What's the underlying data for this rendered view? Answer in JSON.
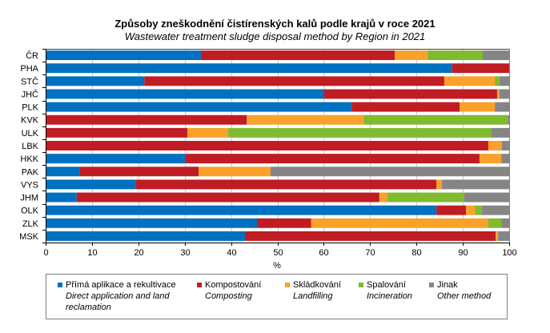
{
  "chart_data": {
    "type": "bar",
    "orientation": "horizontal",
    "stacked": true,
    "title": "Způsoby zneškodnění čistírenských kalů podle krajů v roce 2021",
    "subtitle": "Wastewater treatment sludge disposal method by Region in 2021",
    "xlabel": "%",
    "ylabel": "",
    "xlim": [
      0,
      100
    ],
    "xticks": [
      "0",
      "10",
      "20",
      "30",
      "40",
      "50",
      "60",
      "70",
      "80",
      "90",
      "100"
    ],
    "grid": true,
    "legend_position": "bottom",
    "categories": [
      "ČR",
      "PHA",
      "STČ",
      "JHČ",
      "PLK",
      "KVK",
      "ULK",
      "LBK",
      "HKK",
      "PAK",
      "VYS",
      "JHM",
      "OLK",
      "ZLK",
      "MSK"
    ],
    "series": [
      {
        "name": "Přímá aplikace a rekultivace",
        "name_en": "Direct application and land reclamation",
        "color": "#0070c0",
        "values": [
          33.5,
          87.7,
          21.3,
          60.1,
          66.0,
          0,
          0,
          0,
          30.1,
          7.3,
          19.5,
          6.7,
          84.3,
          45.6,
          43.0
        ]
      },
      {
        "name": "Kompostování",
        "name_en": "Composting",
        "color": "#c01c24",
        "values": [
          41.8,
          12.3,
          64.7,
          37.3,
          23.3,
          43.4,
          30.6,
          95.5,
          63.5,
          25.7,
          64.8,
          65.3,
          6.4,
          11.7,
          54.1
        ]
      },
      {
        "name": "Skládkování",
        "name_en": "Landfilling",
        "color": "#f9a12a",
        "values": [
          7.1,
          0,
          10.9,
          0.5,
          7.6,
          25.2,
          8.8,
          2.9,
          4.7,
          15.5,
          1.2,
          1.7,
          1.9,
          38.2,
          0.5
        ]
      },
      {
        "name": "Spalování",
        "name_en": "Incineration",
        "color": "#7fba2f",
        "values": [
          11.9,
          0,
          1.0,
          0,
          0,
          31.1,
          56.8,
          0,
          0,
          0,
          0,
          16.6,
          1.5,
          2.8,
          0
        ]
      },
      {
        "name": "Jinak",
        "name_en": "Other method",
        "color": "#858585",
        "values": [
          5.7,
          0,
          2.1,
          2.1,
          3.1,
          0.3,
          3.8,
          1.6,
          1.7,
          51.5,
          14.5,
          9.7,
          5.9,
          1.7,
          2.4
        ]
      }
    ]
  }
}
